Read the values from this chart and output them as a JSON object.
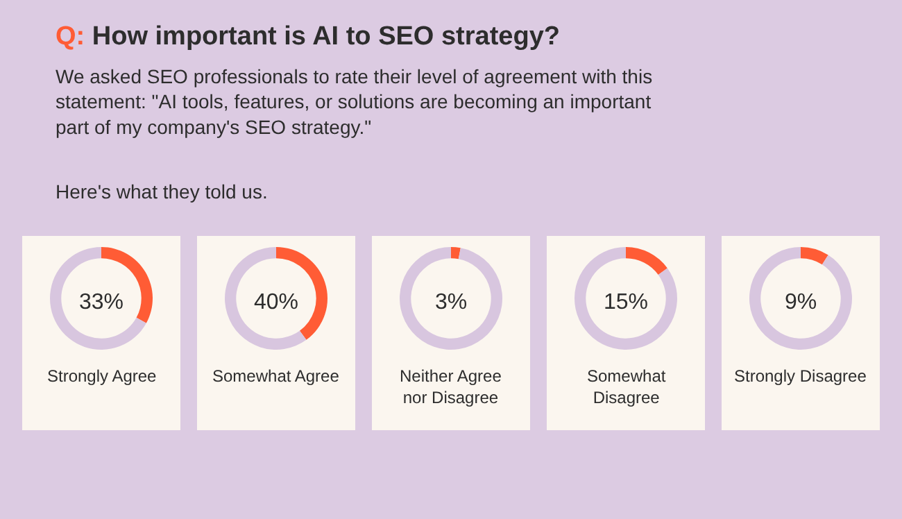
{
  "chart_data": [
    {
      "type": "other",
      "title": "Q: How important is AI to SEO strategy?",
      "subtitle": "We asked SEO professionals to rate their level of agreement with this\nstatement: \"AI tools, features, or solutions are becoming an important\npart of my company's SEO strategy.\"",
      "annotations": [
        "Here's what they told us."
      ]
    },
    {
      "type": "donut",
      "title": "Strongly Agree",
      "categories": [
        null,
        null
      ],
      "values": [
        33,
        67
      ],
      "colors": [
        "#ff5c35",
        "#d8c6df"
      ],
      "annotations": [
        "33%"
      ]
    },
    {
      "type": "donut",
      "title": "Somewhat Agree",
      "categories": [
        null,
        null
      ],
      "values": [
        40,
        60
      ],
      "colors": [
        "#ff5c35",
        "#d8c6df"
      ],
      "annotations": [
        "40%"
      ]
    },
    {
      "type": "donut",
      "title": "Neither Agree\nnor Disagree",
      "categories": [
        null,
        null
      ],
      "values": [
        3,
        97
      ],
      "colors": [
        "#ff5c35",
        "#d8c6df"
      ],
      "annotations": [
        "3%"
      ]
    },
    {
      "type": "donut",
      "title": "Somewhat\nDisagree",
      "categories": [
        null,
        null
      ],
      "values": [
        15,
        85
      ],
      "colors": [
        "#ff5c35",
        "#d8c6df"
      ],
      "annotations": [
        "15%"
      ]
    },
    {
      "type": "donut",
      "title": "Strongly Disagree",
      "categories": [
        null,
        null
      ],
      "values": [
        9,
        91
      ],
      "colors": [
        "#ff5c35",
        "#d8c6df"
      ],
      "annotations": [
        "9%"
      ]
    }
  ]
}
